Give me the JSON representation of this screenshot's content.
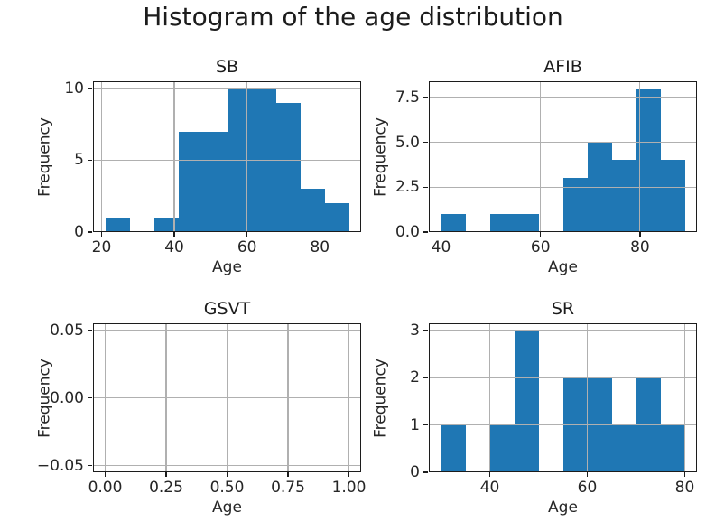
{
  "figure": {
    "title": "Histogram of the age distribution"
  },
  "colors": {
    "bar": "#1f77b4",
    "grid": "#b0b0b0",
    "spine": "#1c1c1c",
    "text": "#262626",
    "background": "#ffffff"
  },
  "chart_data": [
    {
      "type": "histogram",
      "title": "SB",
      "xlabel": "Age",
      "ylabel": "Frequency",
      "bin_start": 21,
      "bin_width": 6.7,
      "counts": [
        1,
        0,
        1,
        7,
        7,
        10,
        10,
        9,
        3,
        2
      ],
      "xlim": [
        17.65,
        91.35
      ],
      "ylim": [
        0,
        10.5
      ],
      "xtick_values": [
        20,
        40,
        60,
        80
      ],
      "xtick_labels": [
        "20",
        "40",
        "60",
        "80"
      ],
      "ytick_values": [
        0,
        5,
        10
      ],
      "ytick_labels": [
        "0",
        "5",
        "10"
      ],
      "grid": true,
      "legend": false
    },
    {
      "type": "histogram",
      "title": "AFIB",
      "xlabel": "Age",
      "ylabel": "Frequency",
      "bin_start": 40,
      "bin_width": 4.9,
      "counts": [
        1,
        0,
        1,
        1,
        0,
        3,
        5,
        4,
        8,
        4
      ],
      "xlim": [
        37.55,
        91.45
      ],
      "ylim": [
        0,
        8.4
      ],
      "xtick_values": [
        40,
        60,
        80
      ],
      "xtick_labels": [
        "40",
        "60",
        "80"
      ],
      "ytick_values": [
        0,
        2.5,
        5,
        7.5
      ],
      "ytick_labels": [
        "0.0",
        "2.5",
        "5.0",
        "7.5"
      ],
      "grid": true,
      "legend": false
    },
    {
      "type": "histogram",
      "title": "GSVT",
      "xlabel": "Age",
      "ylabel": "Frequency",
      "bin_start": 0,
      "bin_width": 0,
      "counts": [],
      "xlim": [
        -0.05,
        1.05
      ],
      "ylim": [
        -0.055,
        0.055
      ],
      "xtick_values": [
        0,
        0.25,
        0.5,
        0.75,
        1.0
      ],
      "xtick_labels": [
        "0.00",
        "0.25",
        "0.50",
        "0.75",
        "1.00"
      ],
      "ytick_values": [
        -0.05,
        0,
        0.05
      ],
      "ytick_labels": [
        "−0.05",
        "0.00",
        "0.05"
      ],
      "grid": true,
      "legend": false
    },
    {
      "type": "histogram",
      "title": "SR",
      "xlabel": "Age",
      "ylabel": "Frequency",
      "bin_start": 30,
      "bin_width": 5,
      "counts": [
        1,
        0,
        1,
        3,
        0,
        2,
        2,
        1,
        2,
        1
      ],
      "xlim": [
        27.5,
        82.5
      ],
      "ylim": [
        0,
        3.15
      ],
      "xtick_values": [
        40,
        60,
        80
      ],
      "xtick_labels": [
        "40",
        "60",
        "80"
      ],
      "ytick_values": [
        0,
        1,
        2,
        3
      ],
      "ytick_labels": [
        "0",
        "1",
        "2",
        "3"
      ],
      "grid": true,
      "legend": false
    }
  ]
}
